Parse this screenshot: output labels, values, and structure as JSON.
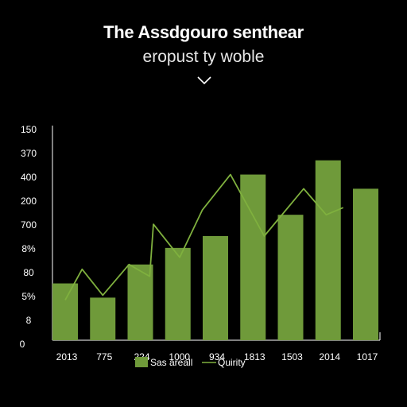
{
  "header": {
    "title": "The Assdgouro senthear",
    "subtitle": "eropust ty woble",
    "expand_icon": "chevron-down-icon"
  },
  "chart_data": {
    "type": "bar",
    "title": "The Assdgouro senthear",
    "subtitle": "eropust ty woble",
    "categories": [
      "2013",
      "775",
      "224",
      "1000",
      "934",
      "1813",
      "1503",
      "2014",
      "1017"
    ],
    "y_tick_labels": [
      "150",
      "370",
      "400",
      "200",
      "700",
      "8%",
      "80",
      "5%",
      "8",
      "0"
    ],
    "series": [
      {
        "name": "Sas areall",
        "type": "bar",
        "color": "#6f9a3a",
        "values": [
          2.4,
          1.8,
          3.2,
          3.9,
          4.4,
          7.0,
          5.3,
          7.6,
          6.4
        ]
      },
      {
        "name": "Quirity",
        "type": "line",
        "color": "#7fb03e",
        "points": [
          [
            0,
            1.7
          ],
          [
            0.45,
            3.0
          ],
          [
            1.0,
            1.9
          ],
          [
            1.7,
            3.2
          ],
          [
            2.25,
            2.7
          ],
          [
            2.35,
            4.9
          ],
          [
            3.05,
            3.5
          ],
          [
            3.65,
            5.5
          ],
          [
            4.4,
            7.0
          ],
          [
            5.3,
            4.4
          ],
          [
            6.35,
            6.4
          ],
          [
            6.95,
            5.3
          ],
          [
            7.4,
            5.6
          ]
        ]
      }
    ],
    "xlabel": "",
    "ylabel": "",
    "ylim": [
      0,
      9
    ],
    "grid": false,
    "legend_position": "bottom-center"
  }
}
